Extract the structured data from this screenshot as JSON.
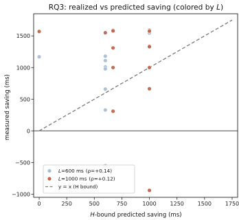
{
  "chart_data": {
    "type": "scatter",
    "title_parts": [
      "RQ3: realized vs predicted saving (colored by ",
      "L",
      ")"
    ],
    "xlabel_parts": [
      "H",
      "-bound predicted saving (ms)"
    ],
    "ylabel": "measured saving (ms)",
    "xlim": [
      -50,
      1800
    ],
    "ylim": [
      -1050,
      1850
    ],
    "xticks": [
      0,
      250,
      500,
      750,
      1000,
      1250,
      1500,
      1750
    ],
    "yticks": [
      -1000,
      -500,
      0,
      500,
      1000,
      1500
    ],
    "zero_line": true,
    "grid": false,
    "legend_placement": "lower-left",
    "series": [
      {
        "name": "L=600 ms",
        "name_var": "L",
        "name_rest": "=600 ms",
        "rho_text": "(ρ=+0.14)",
        "color": "#a9bfd6",
        "points": [
          {
            "x": 0,
            "y": 1170
          },
          {
            "x": 600,
            "y": 1180
          },
          {
            "x": 600,
            "y": 1110
          },
          {
            "x": 600,
            "y": 1010
          },
          {
            "x": 600,
            "y": 980
          },
          {
            "x": 600,
            "y": 660
          },
          {
            "x": 600,
            "y": 330
          },
          {
            "x": 600,
            "y": -550
          },
          {
            "x": 1000,
            "y": 1545
          }
        ]
      },
      {
        "name": "L=1000 ms",
        "name_var": "L",
        "name_rest": "=1000 ms",
        "rho_text": "(ρ=+0.12)",
        "color": "#c1654c",
        "points": [
          {
            "x": 0,
            "y": 1570
          },
          {
            "x": 600,
            "y": 1550
          },
          {
            "x": 670,
            "y": 1590
          },
          {
            "x": 670,
            "y": 1580
          },
          {
            "x": 670,
            "y": 1310
          },
          {
            "x": 670,
            "y": 1000
          },
          {
            "x": 670,
            "y": 310
          },
          {
            "x": 1000,
            "y": 1590
          },
          {
            "x": 1000,
            "y": 1575
          },
          {
            "x": 1000,
            "y": 1340
          },
          {
            "x": 1000,
            "y": 1330
          },
          {
            "x": 1000,
            "y": 1000
          },
          {
            "x": 1000,
            "y": 665
          },
          {
            "x": 1000,
            "y": -940
          }
        ]
      }
    ],
    "reference_line": {
      "label": "y = x (H bound)",
      "x": [
        0,
        1750
      ],
      "y": [
        0,
        1750
      ],
      "color": "#808080",
      "style": "dashed"
    }
  }
}
